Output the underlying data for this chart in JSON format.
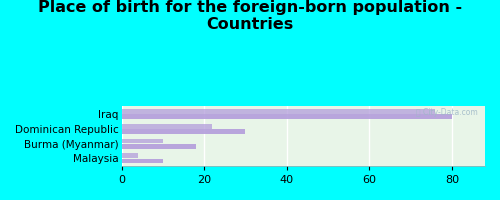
{
  "title": "Place of birth for the foreign-born population -\nCountries",
  "categories": [
    "Iraq",
    "Dominican Republic",
    "Burma (Myanmar)",
    "Malaysia"
  ],
  "values1": [
    80,
    30,
    18,
    10
  ],
  "values2": [
    76,
    22,
    10,
    4
  ],
  "bar_color": "#b39ddb",
  "background_color": "#00ffff",
  "chart_bg": "#e8f5e8",
  "xlim": [
    0,
    88
  ],
  "xticks": [
    0,
    20,
    40,
    60,
    80
  ],
  "bar_height": 0.32,
  "title_fontsize": 11.5,
  "tick_fontsize": 8,
  "label_fontsize": 7.5
}
